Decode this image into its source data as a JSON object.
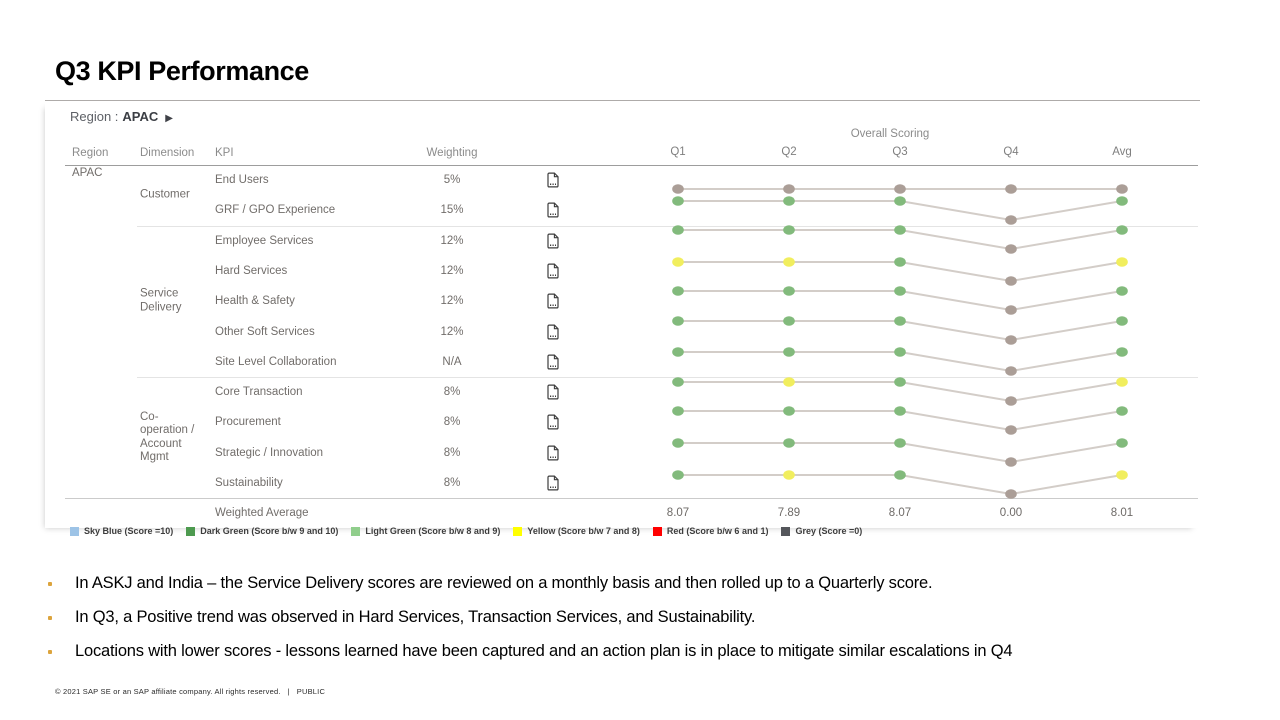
{
  "slide": {
    "title": "Q3 KPI Performance",
    "bullets": [
      "In ASKJ and India – the Service Delivery scores are reviewed on a monthly basis and then rolled up to a Quarterly score.",
      "In Q3, a Positive trend was observed in Hard Services, Transaction Services, and Sustainability.",
      "Locations with lower scores - lessons learned have been captured and an action plan is in place to mitigate similar escalations in Q4"
    ],
    "footer": {
      "text": "© 2021 SAP SE or an SAP affiliate company. All rights reserved.",
      "separator": "|",
      "classification": "PUBLIC"
    }
  },
  "report": {
    "region_label": "Region :",
    "region_value": "APAC",
    "region_arrow": "▶",
    "region_cell": "APAC",
    "table_headers": {
      "region": "Region",
      "dimension": "Dimension",
      "kpi": "KPI",
      "weighting": "Weighting"
    },
    "overall_scoring_label": "Overall Scoring",
    "dimension_groups": [
      {
        "label": "Customer",
        "lines": [
          "Customer"
        ],
        "row_start": 0,
        "row_count": 2
      },
      {
        "label": "Service Delivery",
        "lines": [
          "Service",
          "Delivery"
        ],
        "row_start": 2,
        "row_count": 5
      },
      {
        "label": "Co-operation / Account Mgmt",
        "lines": [
          "Co-",
          "operation /",
          "Account",
          "Mgmt"
        ],
        "row_start": 7,
        "row_count": 4
      }
    ]
  },
  "chart_data": {
    "type": "line",
    "title": "Overall Scoring",
    "columns": [
      "Q1",
      "Q2",
      "Q3",
      "Q4",
      "Avg"
    ],
    "rows": [
      {
        "kpi": "End Users",
        "weighting": "5%",
        "dot_colors": [
          "grey",
          "grey",
          "grey",
          "grey",
          "grey"
        ],
        "q4_dip": false
      },
      {
        "kpi": "GRF / GPO Experience",
        "weighting": "15%",
        "dot_colors": [
          "green",
          "green",
          "green",
          "grey",
          "green"
        ],
        "q4_dip": true
      },
      {
        "kpi": "Employee Services",
        "weighting": "12%",
        "dot_colors": [
          "green",
          "green",
          "green",
          "grey",
          "green"
        ],
        "q4_dip": true
      },
      {
        "kpi": "Hard Services",
        "weighting": "12%",
        "dot_colors": [
          "yellow",
          "yellow",
          "green",
          "grey",
          "yellow"
        ],
        "q4_dip": true
      },
      {
        "kpi": "Health & Safety",
        "weighting": "12%",
        "dot_colors": [
          "green",
          "green",
          "green",
          "grey",
          "green"
        ],
        "q4_dip": true
      },
      {
        "kpi": "Other Soft Services",
        "weighting": "12%",
        "dot_colors": [
          "green",
          "green",
          "green",
          "grey",
          "green"
        ],
        "q4_dip": true
      },
      {
        "kpi": "Site Level Collaboration",
        "weighting": "N/A",
        "dot_colors": [
          "green",
          "green",
          "green",
          "grey",
          "green"
        ],
        "q4_dip": true
      },
      {
        "kpi": "Core Transaction",
        "weighting": "8%",
        "dot_colors": [
          "green",
          "yellow",
          "green",
          "grey",
          "yellow"
        ],
        "q4_dip": true
      },
      {
        "kpi": "Procurement",
        "weighting": "8%",
        "dot_colors": [
          "green",
          "green",
          "green",
          "grey",
          "green"
        ],
        "q4_dip": true
      },
      {
        "kpi": "Strategic / Innovation",
        "weighting": "8%",
        "dot_colors": [
          "green",
          "green",
          "green",
          "grey",
          "green"
        ],
        "q4_dip": true
      },
      {
        "kpi": "Sustainability",
        "weighting": "8%",
        "dot_colors": [
          "green",
          "yellow",
          "green",
          "grey",
          "yellow"
        ],
        "q4_dip": true
      }
    ],
    "weighted_average": {
      "label": "Weighted Average",
      "values": [
        "8.07",
        "7.89",
        "8.07",
        "0.00",
        "8.01"
      ]
    },
    "palette": {
      "green": "#82ba7c",
      "yellow": "#f1ee5e",
      "grey": "#ab9e97",
      "line": "#d3cdc8"
    },
    "legend": [
      {
        "label": "Sky Blue (Score =10)",
        "color": "#9dc3e6"
      },
      {
        "label": "Dark Green (Score b/w 9 and 10)",
        "color": "#4d9a4f"
      },
      {
        "label": "Light Green (Score b/w 8 and 9)",
        "color": "#90ce8c"
      },
      {
        "label": "Yellow (Score b/w 7 and 8)",
        "color": "#ffff00"
      },
      {
        "label": "Red (Score b/w 6 and 1)",
        "color": "#ff0000"
      },
      {
        "label": "Grey (Score =0)",
        "color": "#54565b"
      }
    ],
    "layout_hints": {
      "grid": "row separators per dimension group",
      "legend_position": "bottom-left",
      "q4_dip_meaning": "Q4 point drawn lower (score 0 / grey)"
    }
  }
}
